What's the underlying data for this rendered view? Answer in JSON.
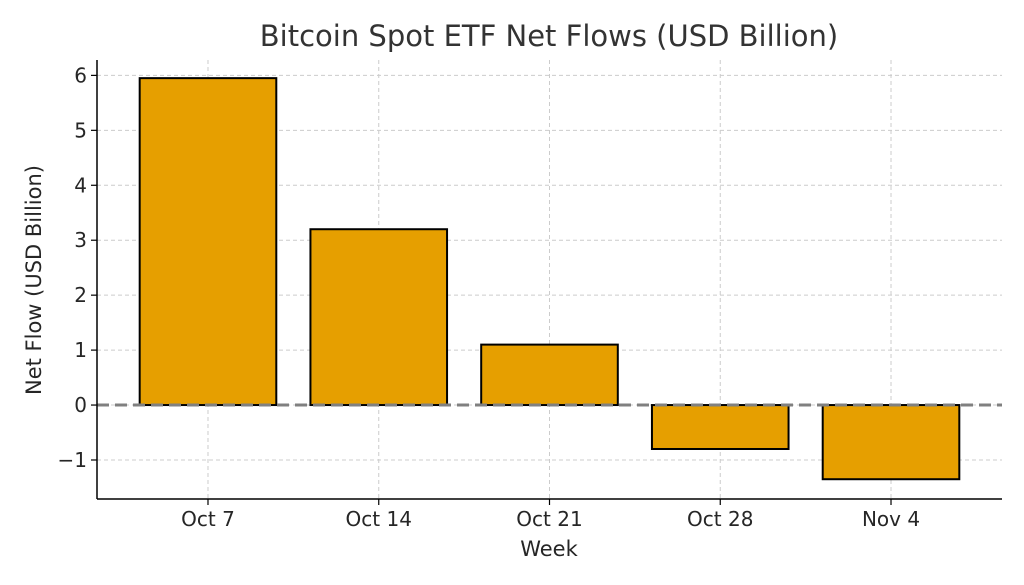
{
  "chart_data": {
    "type": "bar",
    "title": "Bitcoin Spot ETF Net Flows (USD Billion)",
    "xlabel": "Week",
    "ylabel": "Net Flow (USD Billion)",
    "categories": [
      "Oct 7",
      "Oct 14",
      "Oct 21",
      "Oct 28",
      "Nov 4"
    ],
    "values": [
      5.95,
      3.2,
      1.1,
      -0.8,
      -1.35
    ],
    "ylim": [
      -1.71,
      6.28
    ],
    "yticks": [
      -1,
      0,
      1,
      2,
      3,
      4,
      5,
      6
    ],
    "ytick_labels": [
      "−1",
      "0",
      "1",
      "2",
      "3",
      "4",
      "5",
      "6"
    ],
    "grid": true,
    "zero_line": true,
    "colors": {
      "bar": "#E69F00",
      "edge": "#000000",
      "grid": "#cccccc",
      "zero_line": "#808080"
    }
  }
}
